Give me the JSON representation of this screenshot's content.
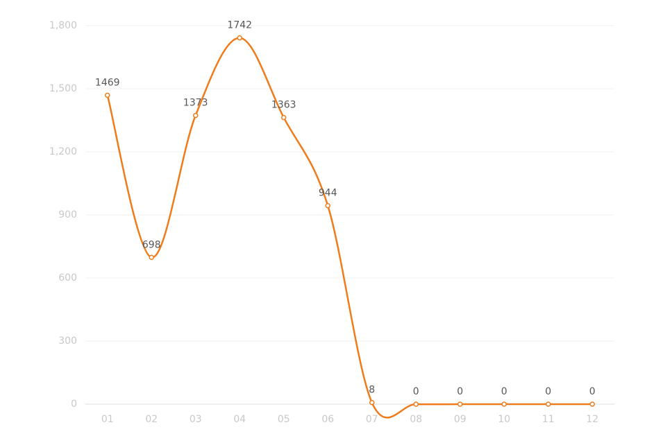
{
  "chart_data": {
    "type": "line",
    "categories": [
      "01",
      "02",
      "03",
      "04",
      "05",
      "06",
      "07",
      "08",
      "09",
      "10",
      "11",
      "12"
    ],
    "values": [
      1469,
      698,
      1373,
      1742,
      1363,
      944,
      8,
      0,
      0,
      0,
      0,
      0
    ],
    "color": "#f07b1a",
    "ylim": [
      0,
      1800
    ],
    "yticks": [
      0,
      300,
      600,
      900,
      {
        "value": 1200,
        "label": "1,200"
      },
      {
        "value": 1500,
        "label": "1,500"
      },
      {
        "value": 1800,
        "label": "1,800"
      }
    ],
    "grid": true,
    "smooth": true
  }
}
